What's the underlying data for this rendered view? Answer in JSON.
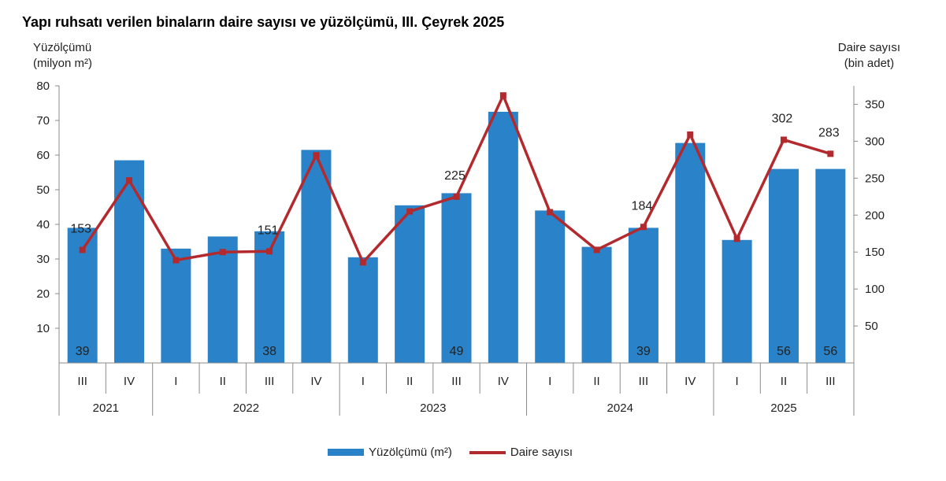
{
  "chart_data": {
    "type": "bar",
    "title": "Yapı ruhsatı verilen binaların daire sayısı ve yüzölçümü, III. Çeyrek 2025",
    "ylabel_left": [
      "Yüzölçümü",
      "(milyon m²)"
    ],
    "ylabel_right": [
      "Daire sayısı",
      "(bin adet)"
    ],
    "ylim_left": [
      0,
      80
    ],
    "ylim_right": [
      0,
      375
    ],
    "yticks_left": [
      10,
      20,
      30,
      40,
      50,
      60,
      70,
      80
    ],
    "yticks_right": [
      50,
      100,
      150,
      200,
      250,
      300,
      350
    ],
    "categories": [
      "III",
      "IV",
      "I",
      "II",
      "III",
      "IV",
      "I",
      "II",
      "III",
      "IV",
      "I",
      "II",
      "III",
      "IV",
      "I",
      "II",
      "III"
    ],
    "year_groups": [
      {
        "label": "2021",
        "count": 2
      },
      {
        "label": "2022",
        "count": 4
      },
      {
        "label": "2023",
        "count": 4
      },
      {
        "label": "2024",
        "count": 4
      },
      {
        "label": "2025",
        "count": 3
      }
    ],
    "series": [
      {
        "name": "Yüzölçümü (m²)",
        "type": "bar",
        "axis": "left",
        "color": "#2a82c8",
        "values": [
          39,
          58.5,
          33,
          36.5,
          38,
          61.5,
          30.5,
          45.5,
          49,
          72.5,
          44,
          33.5,
          39,
          63.5,
          35.5,
          56,
          56
        ],
        "labels": [
          "39",
          "",
          "",
          "",
          "38",
          "",
          "",
          "",
          "49",
          "",
          "",
          "",
          "39",
          "",
          "",
          "56",
          "56"
        ]
      },
      {
        "name": "Daire sayısı",
        "type": "line",
        "axis": "right",
        "color": "#b22a2e",
        "values": [
          153,
          247,
          139,
          150,
          151,
          281,
          136,
          205,
          225,
          362,
          204,
          153,
          184,
          309,
          168,
          302,
          283
        ],
        "labels": [
          "153",
          "",
          "",
          "",
          "151",
          "",
          "",
          "",
          "225",
          "",
          "",
          "",
          "184",
          "",
          "",
          "302",
          "283"
        ]
      }
    ],
    "legend": "bottom-center",
    "grid": false
  }
}
